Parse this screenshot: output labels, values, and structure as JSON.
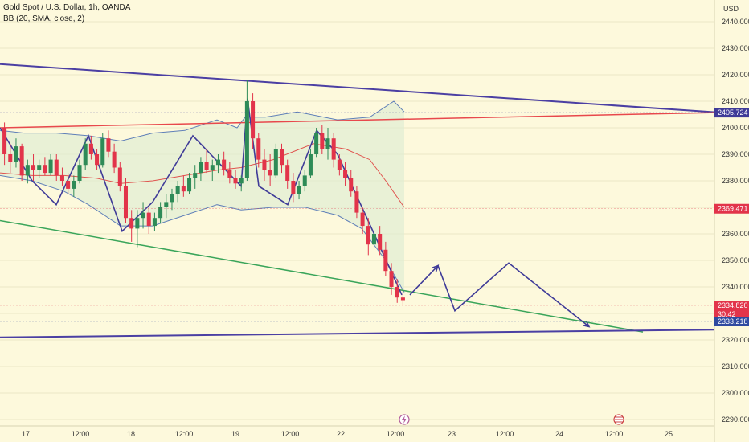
{
  "legend": {
    "title": "Gold Spot / U.S. Dollar, 1h, OANDA",
    "indicator": "BB (20, SMA, close, 2)"
  },
  "colors": {
    "background": "#fdf9dc",
    "up": "#2e8b57",
    "down": "#e2344a",
    "purple_line": "#4b3fa3",
    "red_line": "#e8484c",
    "green_line": "#3aa55a",
    "band": "#5f7fb8",
    "basis": "#e0544f",
    "projection": "#3f3b98"
  },
  "chart_data": {
    "type": "candlestick",
    "currency": "USD",
    "ylim": [
      2288,
      2446
    ],
    "y_ticks": [
      "2440.000",
      "2430.000",
      "2420.000",
      "2410.000",
      "2400.000",
      "2390.000",
      "2380.000",
      "2370.000",
      "2360.000",
      "2350.000",
      "2340.000",
      "2330.000",
      "2320.000",
      "2310.000",
      "2300.000",
      "2290.000"
    ],
    "x_ticks": [
      "17",
      "12:00",
      "18",
      "12:00",
      "19",
      "12:00",
      "22",
      "12:00",
      "23",
      "12:00",
      "24",
      "12:00",
      "25"
    ],
    "price_labels": [
      {
        "text": "2405.724",
        "value": 2405.724,
        "color": "#3f3b98"
      },
      {
        "text": "2369.471",
        "value": 2369.471,
        "color": "#e2344a"
      },
      {
        "text": "2334.820",
        "sub": "30:42",
        "value": 2334.82,
        "color": "#e2344a"
      },
      {
        "text": "2333.218",
        "value": 2333.218,
        "color": "#2f4aa0"
      }
    ],
    "candles_ohlc": [
      [
        2400,
        2402,
        2386,
        2390
      ],
      [
        2390,
        2394,
        2383,
        2387
      ],
      [
        2387,
        2396,
        2385,
        2393
      ],
      [
        2393,
        2394,
        2380,
        2382
      ],
      [
        2382,
        2388,
        2379,
        2386
      ],
      [
        2386,
        2390,
        2380,
        2384
      ],
      [
        2384,
        2388,
        2381,
        2386
      ],
      [
        2386,
        2389,
        2382,
        2383
      ],
      [
        2383,
        2390,
        2382,
        2388
      ],
      [
        2388,
        2390,
        2380,
        2382
      ],
      [
        2382,
        2385,
        2378,
        2380
      ],
      [
        2380,
        2383,
        2375,
        2377
      ],
      [
        2377,
        2382,
        2374,
        2380
      ],
      [
        2380,
        2388,
        2379,
        2386
      ],
      [
        2386,
        2396,
        2384,
        2394
      ],
      [
        2394,
        2397,
        2388,
        2390
      ],
      [
        2390,
        2392,
        2384,
        2386
      ],
      [
        2386,
        2398,
        2385,
        2396
      ],
      [
        2396,
        2399,
        2389,
        2391
      ],
      [
        2391,
        2394,
        2383,
        2385
      ],
      [
        2385,
        2387,
        2376,
        2378
      ],
      [
        2378,
        2381,
        2364,
        2366
      ],
      [
        2366,
        2369,
        2357,
        2362
      ],
      [
        2362,
        2369,
        2355,
        2366
      ],
      [
        2366,
        2372,
        2362,
        2368
      ],
      [
        2368,
        2370,
        2360,
        2363
      ],
      [
        2363,
        2368,
        2361,
        2366
      ],
      [
        2366,
        2372,
        2364,
        2370
      ],
      [
        2370,
        2375,
        2366,
        2372
      ],
      [
        2372,
        2377,
        2369,
        2375
      ],
      [
        2375,
        2380,
        2372,
        2378
      ],
      [
        2378,
        2382,
        2374,
        2376
      ],
      [
        2376,
        2383,
        2375,
        2381
      ],
      [
        2381,
        2386,
        2377,
        2383
      ],
      [
        2383,
        2389,
        2380,
        2387
      ],
      [
        2387,
        2392,
        2383,
        2384
      ],
      [
        2384,
        2388,
        2380,
        2386
      ],
      [
        2386,
        2390,
        2383,
        2388
      ],
      [
        2388,
        2391,
        2382,
        2384
      ],
      [
        2384,
        2387,
        2379,
        2381
      ],
      [
        2381,
        2384,
        2377,
        2379
      ],
      [
        2379,
        2382,
        2376,
        2381
      ],
      [
        2381,
        2418,
        2380,
        2410
      ],
      [
        2410,
        2413,
        2392,
        2396
      ],
      [
        2396,
        2398,
        2385,
        2388
      ],
      [
        2388,
        2392,
        2380,
        2384
      ],
      [
        2384,
        2390,
        2378,
        2382
      ],
      [
        2382,
        2394,
        2381,
        2392
      ],
      [
        2392,
        2394,
        2383,
        2386
      ],
      [
        2386,
        2388,
        2377,
        2380
      ],
      [
        2380,
        2383,
        2372,
        2375
      ],
      [
        2375,
        2380,
        2373,
        2378
      ],
      [
        2378,
        2384,
        2376,
        2382
      ],
      [
        2382,
        2392,
        2381,
        2390
      ],
      [
        2390,
        2400,
        2389,
        2398
      ],
      [
        2398,
        2401,
        2390,
        2392
      ],
      [
        2392,
        2400,
        2388,
        2396
      ],
      [
        2396,
        2398,
        2385,
        2388
      ],
      [
        2388,
        2390,
        2382,
        2384
      ],
      [
        2384,
        2387,
        2378,
        2381
      ],
      [
        2381,
        2384,
        2374,
        2376
      ],
      [
        2376,
        2378,
        2366,
        2368
      ],
      [
        2368,
        2370,
        2360,
        2363
      ],
      [
        2363,
        2366,
        2352,
        2356
      ],
      [
        2356,
        2362,
        2355,
        2360
      ],
      [
        2360,
        2363,
        2352,
        2354
      ],
      [
        2354,
        2357,
        2344,
        2346
      ],
      [
        2346,
        2349,
        2337,
        2340
      ],
      [
        2340,
        2343,
        2334,
        2336
      ],
      [
        2336,
        2339,
        2333,
        2335
      ]
    ],
    "bb_upper": [
      [
        0,
        2399
      ],
      [
        30,
        2398
      ],
      [
        70,
        2398
      ],
      [
        110,
        2397
      ],
      [
        150,
        2395
      ],
      [
        190,
        2398
      ],
      [
        230,
        2399
      ],
      [
        270,
        2403
      ],
      [
        295,
        2400
      ],
      [
        305,
        2404
      ],
      [
        330,
        2404
      ],
      [
        370,
        2406
      ],
      [
        420,
        2403
      ],
      [
        460,
        2404
      ],
      [
        490,
        2410
      ],
      [
        503,
        2406
      ]
    ],
    "bb_basis": [
      [
        0,
        2383
      ],
      [
        40,
        2382
      ],
      [
        80,
        2382
      ],
      [
        120,
        2381
      ],
      [
        150,
        2379
      ],
      [
        190,
        2380
      ],
      [
        230,
        2382
      ],
      [
        270,
        2384
      ],
      [
        300,
        2385
      ],
      [
        340,
        2388
      ],
      [
        390,
        2394
      ],
      [
        430,
        2392
      ],
      [
        460,
        2388
      ],
      [
        480,
        2380
      ],
      [
        503,
        2370
      ]
    ],
    "bb_lower": [
      [
        0,
        2382
      ],
      [
        40,
        2380
      ],
      [
        80,
        2376
      ],
      [
        110,
        2371
      ],
      [
        150,
        2363
      ],
      [
        190,
        2363
      ],
      [
        230,
        2367
      ],
      [
        270,
        2371
      ],
      [
        300,
        2369
      ],
      [
        340,
        2370
      ],
      [
        380,
        2370
      ],
      [
        420,
        2367
      ],
      [
        450,
        2362
      ],
      [
        480,
        2350
      ],
      [
        503,
        2338
      ]
    ],
    "lines": [
      {
        "name": "upper-trendline",
        "from": [
          0,
          2424
        ],
        "to": [
          932,
          2405
        ]
      },
      {
        "name": "red-trendline",
        "from": [
          0,
          2400
        ],
        "to": [
          932,
          2406
        ]
      },
      {
        "name": "green-trendline",
        "from": [
          0,
          2365
        ],
        "to": [
          800,
          2323
        ]
      },
      {
        "name": "lower-trendline",
        "from": [
          0,
          2321
        ],
        "to": [
          932,
          2324
        ]
      }
    ],
    "zigzag": [
      [
        0,
        2400
      ],
      [
        40,
        2380
      ],
      [
        70,
        2371
      ],
      [
        110,
        2397
      ],
      [
        152,
        2361
      ],
      [
        190,
        2372
      ],
      [
        240,
        2397
      ],
      [
        300,
        2378
      ],
      [
        308,
        2411
      ],
      [
        322,
        2378
      ],
      [
        358,
        2371
      ],
      [
        394,
        2399
      ],
      [
        420,
        2390
      ],
      [
        458,
        2365
      ],
      [
        500,
        2337
      ]
    ],
    "projection": [
      [
        510,
        2337
      ],
      [
        545,
        2348
      ],
      [
        566,
        2331
      ],
      [
        633,
        2349
      ],
      [
        733,
        2325
      ]
    ]
  }
}
